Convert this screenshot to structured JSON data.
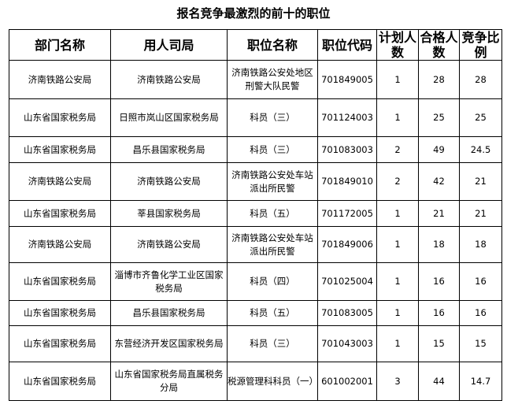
{
  "title": "报名竞争最激烈的前十的职位",
  "headers": [
    "部门名称",
    "用人司局",
    "职位名称",
    "职位代码",
    "计划人数",
    "合格人数",
    "竞争比例"
  ],
  "rows": [
    [
      "济南铁路公安局",
      "济南铁路公安局",
      "济南铁路公安处地区刑警大队民警",
      "701849005",
      "1",
      "28",
      "28"
    ],
    [
      "山东省国家税务局",
      "日照市岚山区国家税务局",
      "科员（三）",
      "701124003",
      "1",
      "25",
      "25"
    ],
    [
      "山东省国家税务局",
      "昌乐县国家税务局",
      "科员（三）",
      "701083003",
      "2",
      "49",
      "24.5"
    ],
    [
      "济南铁路公安局",
      "济南铁路公安局",
      "济南铁路公安处车站派出所民警",
      "701849010",
      "2",
      "42",
      "21"
    ],
    [
      "山东省国家税务局",
      "莘县国家税务局",
      "科员（五）",
      "701172005",
      "1",
      "21",
      "21"
    ],
    [
      "济南铁路公安局",
      "济南铁路公安局",
      "济南铁路公安处车站派出所民警",
      "701849006",
      "1",
      "18",
      "18"
    ],
    [
      "山东省国家税务局",
      "淄博市齐鲁化学工业区国家税务局",
      "科员（四）",
      "701025004",
      "1",
      "16",
      "16"
    ],
    [
      "山东省国家税务局",
      "昌乐县国家税务局",
      "科员（五）",
      "701083005",
      "1",
      "16",
      "16"
    ],
    [
      "山东省国家税务局",
      "东营经济开发区国家税务局",
      "科员（三）",
      "701043003",
      "1",
      "15",
      "15"
    ],
    [
      "山东省国家税务局",
      "山东省国家税务局直属税务分局",
      "税源管理科科员（一）",
      "601002001",
      "3",
      "44",
      "14.7"
    ]
  ]
}
